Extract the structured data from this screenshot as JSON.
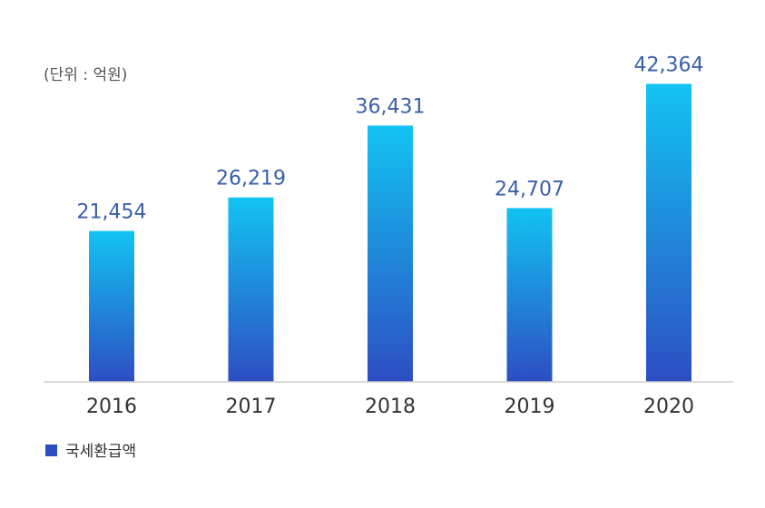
{
  "chart_data": {
    "type": "bar",
    "unit_label": "(단위 : 억원)",
    "categories": [
      "2016",
      "2017",
      "2018",
      "2019",
      "2020"
    ],
    "series": [
      {
        "name": "국세환급액",
        "values": [
          21454,
          26219,
          36431,
          24707,
          42364
        ],
        "value_labels": [
          "21,454",
          "26,219",
          "36,431",
          "24,707",
          "42,364"
        ],
        "color_top": "#12c3f3",
        "color_bottom": "#2d4ec2"
      }
    ],
    "ylim": [
      0,
      45000
    ],
    "grid": false,
    "legend_position": "bottom-left",
    "colors": {
      "axis": "#cfcfcf",
      "value_text": "#3a5fa8",
      "legend_swatch": "#2d4ec2"
    }
  }
}
